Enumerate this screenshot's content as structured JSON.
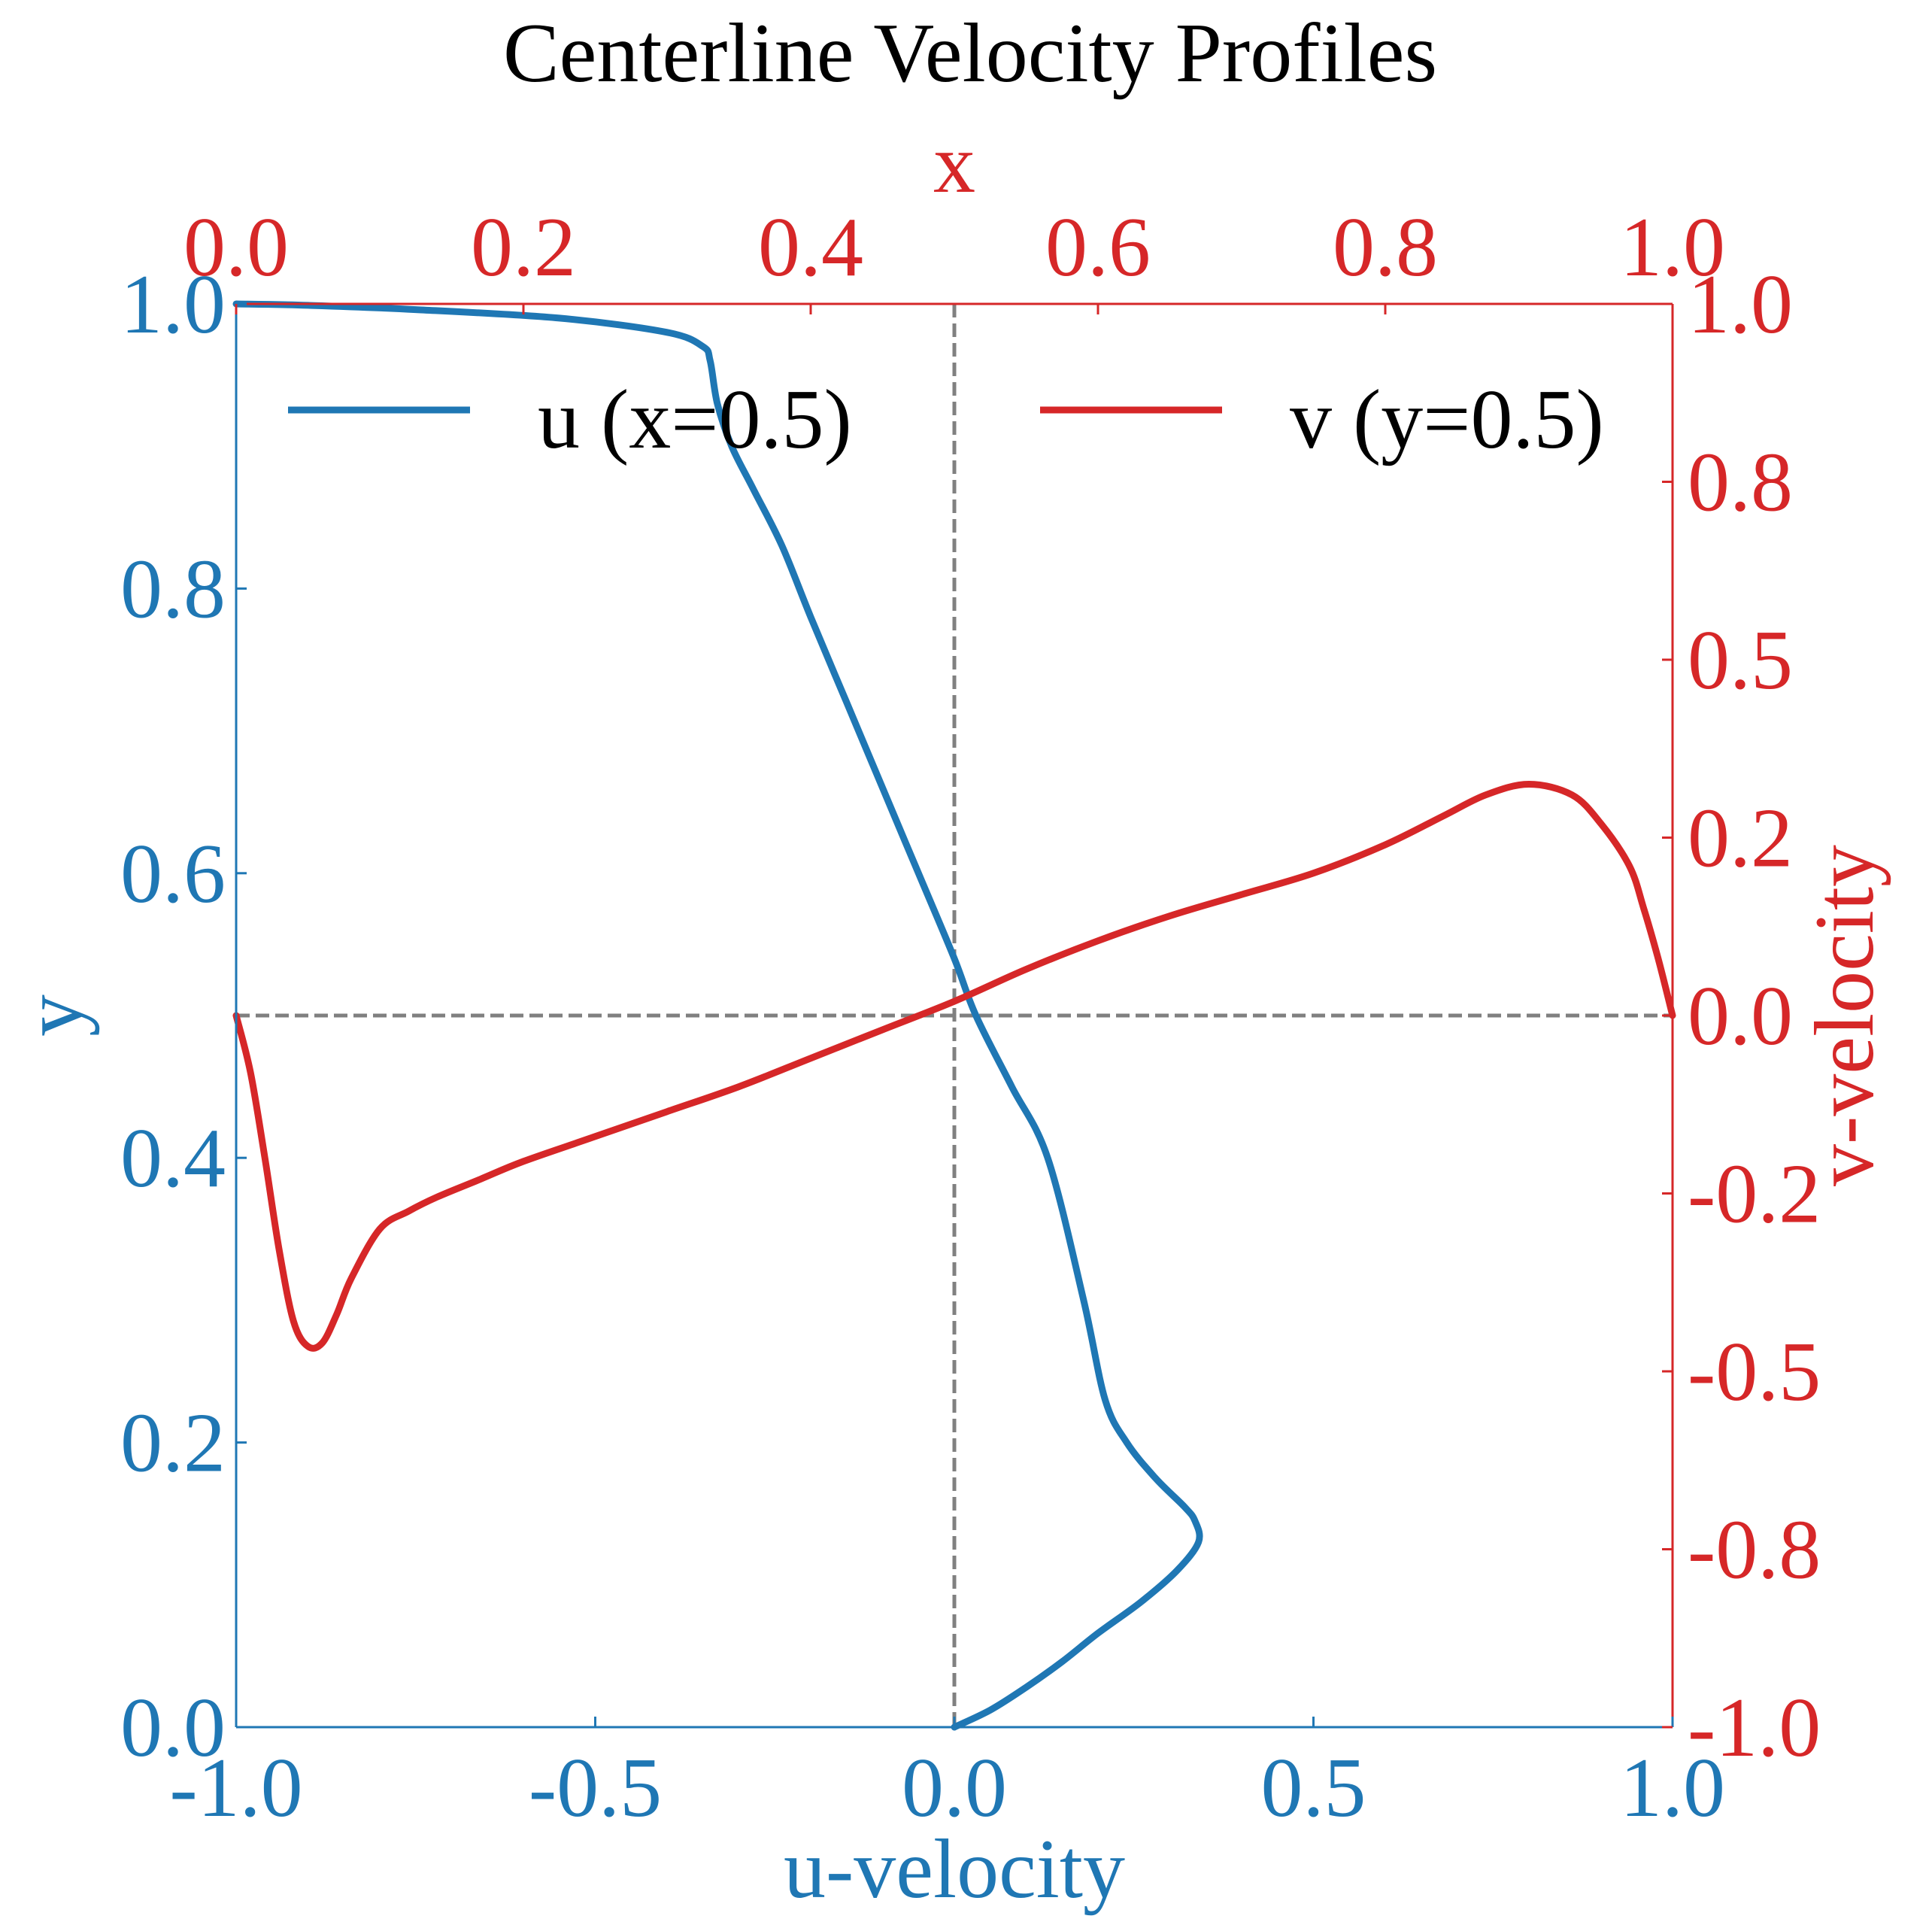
{
  "colors": {
    "u_series": "#1f77b4",
    "v_series": "#d62728",
    "reference": "#808080",
    "title": "#000000"
  },
  "chart_data": {
    "type": "line",
    "title": "Centerline Velocity Profiles",
    "bottom_axis": {
      "label": "u-velocity",
      "range": [
        -1.0,
        1.0
      ],
      "ticks": [
        "-1.0",
        "-0.5",
        "0.0",
        "0.5",
        "1.0"
      ]
    },
    "left_axis": {
      "label": "y",
      "range": [
        0.0,
        1.0
      ],
      "ticks": [
        "0.0",
        "0.2",
        "0.4",
        "0.6",
        "0.8",
        "1.0"
      ]
    },
    "top_axis": {
      "label": "x",
      "range": [
        0.0,
        1.0
      ],
      "ticks": [
        "0.0",
        "0.2",
        "0.4",
        "0.6",
        "0.8",
        "1.0"
      ]
    },
    "right_axis": {
      "label": "v-velocity",
      "range": [
        -1.0,
        1.0
      ],
      "ticks": [
        "-1.0",
        "-0.8",
        "-0.5",
        "-0.2",
        "0.0",
        "0.2",
        "0.5",
        "0.8",
        "1.0"
      ],
      "tick_values": [
        -1.0,
        -0.75,
        -0.5,
        -0.25,
        0.0,
        0.25,
        0.5,
        0.75,
        1.0
      ]
    },
    "legend": {
      "placement": "top",
      "entries": [
        "u (x=0.5)",
        "v (y=0.5)"
      ]
    },
    "reference_lines": {
      "vertical_u": 0.0,
      "horizontal_y": 0.5
    },
    "series": [
      {
        "name": "u (x=0.5)",
        "axes": "u-velocity vs y",
        "u": [
          0.0,
          0.05,
          0.1,
          0.15,
          0.2,
          0.26,
          0.31,
          0.34,
          0.335,
          0.32,
          0.28,
          0.24,
          0.21,
          0.18,
          0.13,
          0.08,
          0.03,
          0.0,
          -0.05,
          -0.1,
          -0.15,
          -0.2,
          -0.24,
          -0.28,
          -0.31,
          -0.33,
          -0.34,
          -0.35,
          -0.4,
          -0.55,
          -0.75,
          -0.9,
          -1.0
        ],
        "y": [
          0.0,
          0.012,
          0.028,
          0.046,
          0.066,
          0.088,
          0.11,
          0.13,
          0.145,
          0.155,
          0.175,
          0.2,
          0.23,
          0.3,
          0.4,
          0.45,
          0.5,
          0.54,
          0.6,
          0.66,
          0.72,
          0.78,
          0.83,
          0.87,
          0.9,
          0.93,
          0.96,
          0.97,
          0.98,
          0.99,
          0.996,
          0.999,
          1.0
        ]
      },
      {
        "name": "v (y=0.5)",
        "axes": "x vs v-velocity",
        "x": [
          0.0,
          0.01,
          0.02,
          0.03,
          0.04,
          0.05,
          0.06,
          0.07,
          0.08,
          0.1,
          0.12,
          0.14,
          0.17,
          0.2,
          0.25,
          0.3,
          0.35,
          0.4,
          0.45,
          0.5,
          0.55,
          0.6,
          0.65,
          0.7,
          0.75,
          0.8,
          0.84,
          0.87,
          0.9,
          0.93,
          0.95,
          0.97,
          0.98,
          0.99,
          1.0
        ],
        "v": [
          0.0,
          -0.08,
          -0.2,
          -0.33,
          -0.43,
          -0.465,
          -0.46,
          -0.42,
          -0.37,
          -0.3,
          -0.275,
          -0.255,
          -0.23,
          -0.205,
          -0.17,
          -0.135,
          -0.1,
          -0.06,
          -0.02,
          0.02,
          0.065,
          0.105,
          0.14,
          0.17,
          0.2,
          0.24,
          0.28,
          0.31,
          0.325,
          0.31,
          0.27,
          0.21,
          0.15,
          0.08,
          0.0
        ]
      }
    ]
  }
}
